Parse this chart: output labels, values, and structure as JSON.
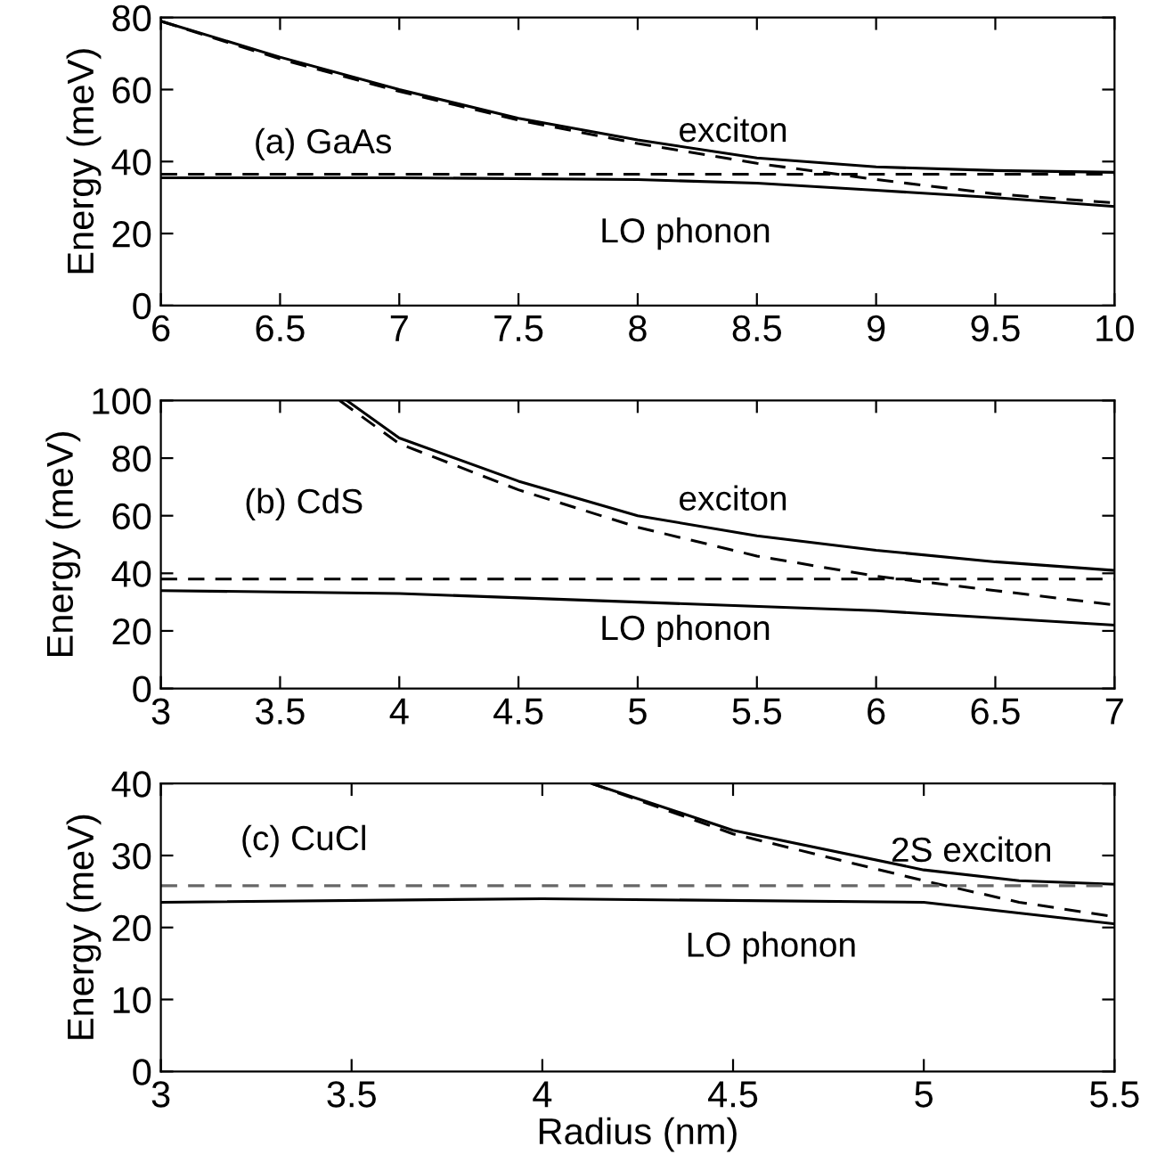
{
  "chart_data": [
    {
      "type": "line",
      "ylabel": "Energy (meV)",
      "xlim": [
        6,
        10
      ],
      "xticks": [
        6,
        6.5,
        7,
        7.5,
        8,
        8.5,
        9,
        9.5,
        10
      ],
      "ylim": [
        0,
        80
      ],
      "yticks": [
        0,
        20,
        40,
        60,
        80
      ],
      "grid": false,
      "legend": false,
      "annotations": [
        "(a) GaAs",
        "exciton",
        "LO phonon"
      ],
      "series": [
        {
          "color": "#000000",
          "line_style": "solid",
          "x": [
            6,
            6.5,
            7,
            7.5,
            8,
            8.5,
            9,
            9.5,
            10
          ],
          "values": [
            79,
            69,
            60,
            52,
            46,
            41,
            38.5,
            37.5,
            37
          ]
        },
        {
          "color": "#000000",
          "line_style": "dashed",
          "x": [
            6,
            6.5,
            7,
            7.5,
            8,
            8.5,
            9,
            9.5,
            10
          ],
          "values": [
            79,
            68.5,
            59.5,
            51.5,
            45,
            39.5,
            35,
            31,
            28.5
          ]
        },
        {
          "color": "#000000",
          "line_style": "dashed",
          "x": [
            6,
            10
          ],
          "values": [
            36.5,
            36.5
          ]
        },
        {
          "color": "#000000",
          "line_style": "solid",
          "x": [
            6,
            7,
            8,
            8.5,
            9,
            9.5,
            10
          ],
          "values": [
            35.5,
            35.5,
            35,
            34,
            32,
            30,
            27.5
          ]
        }
      ]
    },
    {
      "type": "line",
      "ylabel": "Energy (meV)",
      "xlim": [
        3,
        7
      ],
      "xticks": [
        3,
        3.5,
        4,
        4.5,
        5,
        5.5,
        6,
        6.5,
        7
      ],
      "ylim": [
        0,
        100
      ],
      "yticks": [
        0,
        20,
        40,
        60,
        80,
        100
      ],
      "grid": false,
      "legend": false,
      "annotations": [
        "(b) CdS",
        "exciton",
        "LO phonon"
      ],
      "series": [
        {
          "color": "#000000",
          "line_style": "solid",
          "x": [
            3.78,
            4,
            4.5,
            5,
            5.5,
            6,
            6.5,
            7
          ],
          "values": [
            100,
            87,
            72,
            60,
            53,
            48,
            44,
            41
          ]
        },
        {
          "color": "#000000",
          "line_style": "dashed",
          "x": [
            3.75,
            4,
            4.5,
            5,
            5.5,
            6,
            6.5,
            7
          ],
          "values": [
            100,
            85,
            69,
            56,
            46,
            39,
            34,
            29
          ]
        },
        {
          "color": "#000000",
          "line_style": "dashed",
          "x": [
            3,
            7
          ],
          "values": [
            38,
            38
          ]
        },
        {
          "color": "#000000",
          "line_style": "solid",
          "x": [
            3,
            4,
            5,
            6,
            7
          ],
          "values": [
            34,
            33,
            30,
            27,
            22
          ]
        }
      ]
    },
    {
      "type": "line",
      "xlabel": "Radius (nm)",
      "ylabel": "Energy (meV)",
      "xlim": [
        3,
        5.5
      ],
      "xticks": [
        3,
        3.5,
        4,
        4.5,
        5,
        5.5
      ],
      "ylim": [
        0,
        40
      ],
      "yticks": [
        0,
        10,
        20,
        30,
        40
      ],
      "grid": false,
      "legend": false,
      "annotations": [
        "(c) CuCl",
        "2S exciton",
        "LO phonon"
      ],
      "series": [
        {
          "color": "#000000",
          "line_style": "solid",
          "x": [
            4.13,
            4.5,
            5,
            5.25,
            5.5
          ],
          "values": [
            40,
            33.5,
            28,
            26.5,
            26
          ]
        },
        {
          "color": "#000000",
          "line_style": "dashed",
          "x": [
            4.13,
            4.5,
            5,
            5.25,
            5.5
          ],
          "values": [
            40,
            33,
            26.5,
            23.5,
            21.5
          ]
        },
        {
          "color": "#666666",
          "line_style": "dashed",
          "x": [
            3,
            5.5
          ],
          "values": [
            25.8,
            25.8
          ]
        },
        {
          "color": "#000000",
          "line_style": "solid",
          "x": [
            3,
            4,
            5,
            5.5
          ],
          "values": [
            23.5,
            24,
            23.5,
            20.5
          ]
        }
      ]
    }
  ]
}
